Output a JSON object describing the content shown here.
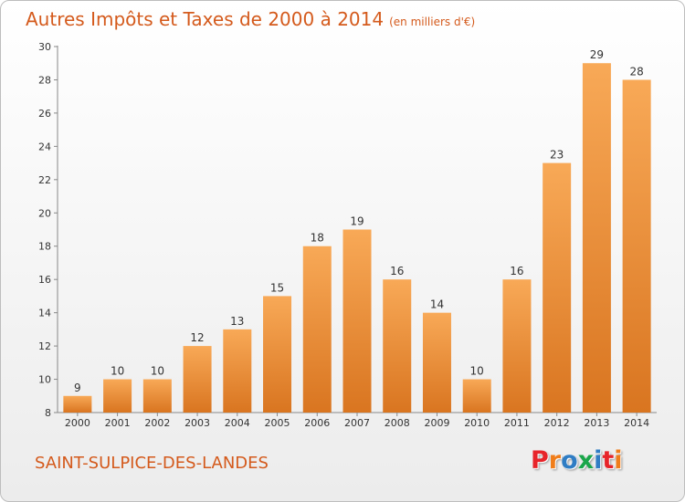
{
  "header": {
    "title": "Autres Impôts et Taxes de 2000 à 2014",
    "subtitle": "(en milliers d'€)"
  },
  "footer": {
    "commune": "SAINT-SULPICE-DES-LANDES",
    "brand": "Proxiti"
  },
  "colors": {
    "bar_top": "#f8a957",
    "bar_bottom": "#d97520",
    "title": "#d45a1c",
    "brand_letters": [
      "#e7242a",
      "#f07d1a",
      "#2f7dc4",
      "#1aa64a",
      "#2f7dc4",
      "#e7242a",
      "#f07d1a"
    ]
  },
  "chart_data": {
    "type": "bar",
    "categories": [
      "2000",
      "2001",
      "2002",
      "2003",
      "2004",
      "2005",
      "2006",
      "2007",
      "2008",
      "2009",
      "2010",
      "2011",
      "2012",
      "2013",
      "2014"
    ],
    "values": [
      9,
      10,
      10,
      12,
      13,
      15,
      18,
      19,
      16,
      14,
      10,
      16,
      23,
      29,
      28
    ],
    "ylim": [
      8,
      30
    ],
    "yticks": [
      8,
      10,
      12,
      14,
      16,
      18,
      20,
      22,
      24,
      26,
      28,
      30
    ],
    "grid": false,
    "data_labels": true
  }
}
